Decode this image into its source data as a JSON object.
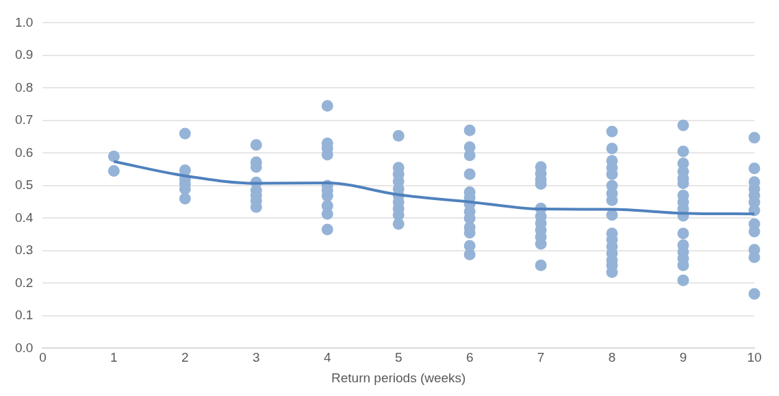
{
  "chart_data": {
    "type": "scatter",
    "xlabel": "Return periods (weeks)",
    "xlim": [
      0,
      10
    ],
    "xticks": [
      0,
      1,
      2,
      3,
      4,
      5,
      6,
      7,
      8,
      9,
      10
    ],
    "ylim": [
      0,
      1
    ],
    "yticks": [
      {
        "value": 0,
        "label": "0.0"
      },
      {
        "value": 0.1,
        "label": "0.1"
      },
      {
        "value": 0.2,
        "label": "0.2"
      },
      {
        "value": 0.3,
        "label": "0.3"
      },
      {
        "value": 0.4,
        "label": "0.4"
      },
      {
        "value": 0.5,
        "label": "0.5"
      },
      {
        "value": 0.6,
        "label": "0.6"
      },
      {
        "value": 0.7,
        "label": "0.7"
      },
      {
        "value": 0.8,
        "label": "0.8"
      },
      {
        "value": 0.9,
        "label": "0.9"
      },
      {
        "value": 1,
        "label": "1.0"
      }
    ],
    "grid": "y",
    "legend": false,
    "marker": "circle",
    "series": [
      {
        "type": "scatter",
        "color": "#95b3d7",
        "x": [
          1,
          1,
          2,
          2,
          2,
          2,
          2,
          2,
          3,
          3,
          3,
          3,
          3,
          3,
          3,
          3,
          4,
          4,
          4,
          4,
          4,
          4,
          4,
          4,
          4,
          4,
          5,
          5,
          5,
          5,
          5,
          5,
          5,
          5,
          5,
          5,
          6,
          6,
          6,
          6,
          6,
          6,
          6,
          6,
          6,
          6,
          6,
          6,
          6,
          7,
          7,
          7,
          7,
          7,
          7,
          7,
          7,
          7,
          7,
          7,
          8,
          8,
          8,
          8,
          8,
          8,
          8,
          8,
          8,
          8,
          8,
          8,
          8,
          8,
          8,
          8,
          9,
          9,
          9,
          9,
          9,
          9,
          9,
          9,
          9,
          9,
          9,
          9,
          9,
          9,
          9,
          9,
          10,
          10,
          10,
          10,
          10,
          10,
          10,
          10,
          10,
          10,
          10,
          10
        ],
        "values": [
          0.59,
          0.545,
          0.66,
          0.547,
          0.52,
          0.505,
          0.49,
          0.46,
          0.625,
          0.572,
          0.557,
          0.51,
          0.485,
          0.47,
          0.453,
          0.434,
          0.745,
          0.63,
          0.615,
          0.595,
          0.5,
          0.485,
          0.468,
          0.438,
          0.413,
          0.365,
          0.653,
          0.555,
          0.535,
          0.513,
          0.49,
          0.47,
          0.45,
          0.43,
          0.41,
          0.382,
          0.67,
          0.618,
          0.593,
          0.535,
          0.48,
          0.463,
          0.443,
          0.42,
          0.4,
          0.372,
          0.355,
          0.315,
          0.288,
          0.557,
          0.537,
          0.518,
          0.505,
          0.43,
          0.405,
          0.384,
          0.363,
          0.342,
          0.321,
          0.255,
          0.666,
          0.614,
          0.576,
          0.555,
          0.535,
          0.5,
          0.476,
          0.455,
          0.41,
          0.353,
          0.334,
          0.313,
          0.292,
          0.271,
          0.255,
          0.234,
          0.685,
          0.605,
          0.568,
          0.543,
          0.522,
          0.507,
          0.47,
          0.449,
          0.428,
          0.407,
          0.353,
          0.317,
          0.296,
          0.276,
          0.255,
          0.209,
          0.647,
          0.553,
          0.511,
          0.49,
          0.47,
          0.449,
          0.424,
          0.382,
          0.359,
          0.303,
          0.28,
          0.167
        ]
      },
      {
        "type": "line",
        "color": "#4f81bd",
        "marker": "none",
        "x": [
          1,
          2,
          3,
          4,
          5,
          6,
          7,
          8,
          9,
          10
        ],
        "values": [
          0.574,
          0.53,
          0.507,
          0.508,
          0.472,
          0.45,
          0.428,
          0.427,
          0.415,
          0.413
        ]
      }
    ]
  }
}
